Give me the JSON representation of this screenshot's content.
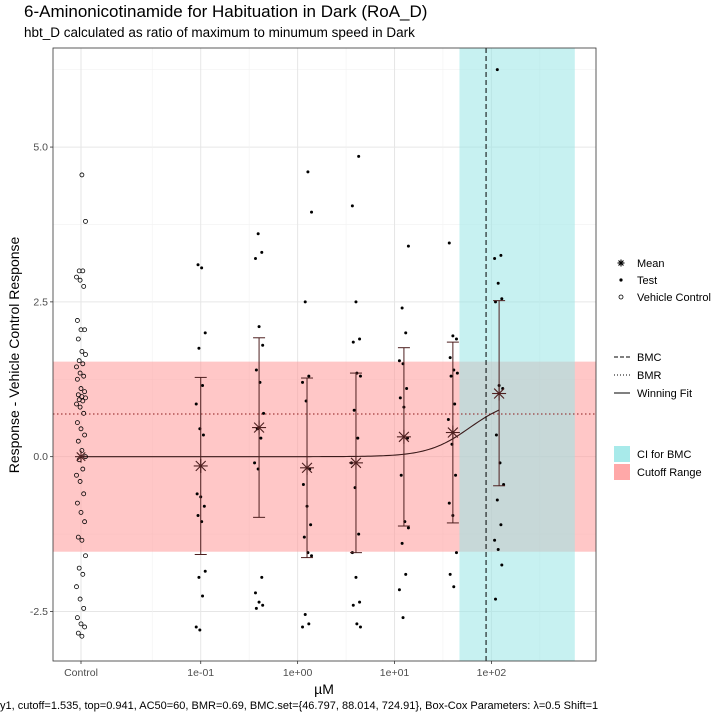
{
  "header": {
    "title": "6-Aminonicotinamide for Habituation in Dark (RoA_D)",
    "subtitle": "hbt_D calculated as ratio of maximum to minumum speed in Dark"
  },
  "caption": "y1, cutoff=1.535, top=0.941, AC50=60, BMR=0.69, BMC.set={46.797, 88.014, 724.91}, Box-Cox Parameters: λ=0.5 Shift=1",
  "chart_data": {
    "type": "scatter",
    "xlabel": "µM",
    "ylabel": "Response - Vehicle Control Response",
    "x_scale": "log10",
    "xlim": [
      0.02,
      1200
    ],
    "ylim": [
      -3.3,
      6.6
    ],
    "x_tick_labels": [
      "Control",
      "1e-01",
      "1e+00",
      "1e+01",
      "1e+02"
    ],
    "x_ticks": [
      0.1,
      1,
      10,
      100
    ],
    "y_ticks": [
      -2.5,
      0.0,
      2.5,
      5.0
    ],
    "y_tick_labels": [
      "-2.5",
      "0.0",
      "2.5",
      "5.0"
    ],
    "cutoff_range": [
      -1.535,
      1.535
    ],
    "bmr": 0.69,
    "bmc": 88.014,
    "bmc_ci": [
      46.797,
      724.91
    ],
    "fit": {
      "type": "hill",
      "top": 0.941,
      "ac50": 60,
      "n": 2
    },
    "vehicle_control": [
      4.55,
      3.8,
      3.0,
      3.0,
      2.9,
      2.85,
      2.75,
      2.2,
      2.05,
      2.05,
      1.9,
      1.7,
      1.65,
      1.55,
      1.5,
      1.45,
      1.35,
      1.3,
      1.25,
      1.1,
      1.05,
      1.0,
      0.97,
      0.95,
      0.92,
      0.9,
      0.85,
      0.8,
      0.7,
      0.55,
      0.45,
      0.35,
      0.25,
      0.1,
      0.0,
      -0.05,
      -0.2,
      -0.3,
      -0.4,
      -0.6,
      -0.75,
      -0.9,
      -1.05,
      -1.3,
      -1.35,
      -1.6,
      -1.8,
      -1.9,
      -2.1,
      -2.3,
      -2.45,
      -2.6,
      -2.7,
      -2.75,
      -2.85,
      -2.9
    ],
    "test": [
      {
        "x": 0.1,
        "values": [
          3.1,
          3.05,
          2.0,
          1.75,
          1.15,
          0.85,
          0.45,
          0.35,
          -0.6,
          -0.65,
          -0.8,
          -0.95,
          -1.05,
          -1.85,
          -1.95,
          -2.25,
          -2.75,
          -2.8
        ]
      },
      {
        "x": 0.4,
        "values": [
          3.6,
          3.3,
          3.2,
          2.1,
          1.8,
          1.4,
          1.2,
          0.7,
          0.45,
          0.3,
          -0.1,
          -0.2,
          -1.95,
          -2.2,
          -2.35,
          -2.4,
          -2.45
        ]
      },
      {
        "x": 1.25,
        "values": [
          4.6,
          3.95,
          2.5,
          1.3,
          1.2,
          0.9,
          -0.2,
          -0.45,
          -0.8,
          -1.1,
          -1.3,
          -1.55,
          -1.6,
          -2.55,
          -2.7,
          -2.75
        ]
      },
      {
        "x": 4.0,
        "values": [
          4.85,
          4.05,
          2.5,
          1.9,
          1.85,
          1.35,
          1.3,
          0.75,
          0.3,
          -0.1,
          -0.5,
          -1.25,
          -1.55,
          -1.95,
          -2.35,
          -2.4,
          -2.7,
          -2.75
        ]
      },
      {
        "x": 12.5,
        "values": [
          3.4,
          2.4,
          2.0,
          1.55,
          1.5,
          1.1,
          0.95,
          0.8,
          0.3,
          -0.3,
          -1.05,
          -1.15,
          -1.4,
          -1.9,
          -2.15,
          -2.6
        ]
      },
      {
        "x": 40,
        "values": [
          3.45,
          1.95,
          1.9,
          1.6,
          1.4,
          1.35,
          1.3,
          0.85,
          0.6,
          0.2,
          -0.3,
          -0.75,
          -0.95,
          -1.55,
          -1.9,
          -2.1
        ]
      },
      {
        "x": 120,
        "values": [
          6.25,
          3.25,
          3.2,
          2.8,
          2.55,
          2.5,
          1.15,
          1.1,
          0.35,
          -0.1,
          -0.45,
          -0.7,
          -1.1,
          -1.35,
          -1.5,
          -1.75,
          -2.3
        ]
      }
    ],
    "means": [
      {
        "x": 0.1,
        "y": -0.15,
        "lo": -1.58,
        "hi": 1.28
      },
      {
        "x": 0.4,
        "y": 0.47,
        "lo": -0.98,
        "hi": 1.92
      },
      {
        "x": 1.25,
        "y": -0.18,
        "lo": -1.63,
        "hi": 1.27
      },
      {
        "x": 4.0,
        "y": -0.1,
        "lo": -1.55,
        "hi": 1.35
      },
      {
        "x": 12.5,
        "y": 0.32,
        "lo": -1.12,
        "hi": 1.76
      },
      {
        "x": 40,
        "y": 0.39,
        "lo": -1.07,
        "hi": 1.85
      },
      {
        "x": 120,
        "y": 1.02,
        "lo": -0.47,
        "hi": 2.52
      }
    ],
    "control_mean": 0.0,
    "colors": {
      "cutoff": "#ff9999",
      "ci": "#99e6e6",
      "mean": "#4d1f1f",
      "points": "#000000",
      "fit": "#3a1a1a"
    },
    "legend": {
      "shapes": [
        {
          "symbol": "star",
          "label": "Mean"
        },
        {
          "symbol": "dot",
          "label": "Test"
        },
        {
          "symbol": "circle",
          "label": "Vehicle Control"
        }
      ],
      "lines": [
        {
          "style": "dashed",
          "label": "BMC"
        },
        {
          "style": "dotted",
          "label": "BMR"
        },
        {
          "style": "solid",
          "label": "Winning Fit"
        }
      ],
      "fills": [
        {
          "color": "#99e6e6",
          "label": "CI for BMC"
        },
        {
          "color": "#ff9999",
          "label": "Cutoff Range"
        }
      ]
    }
  }
}
